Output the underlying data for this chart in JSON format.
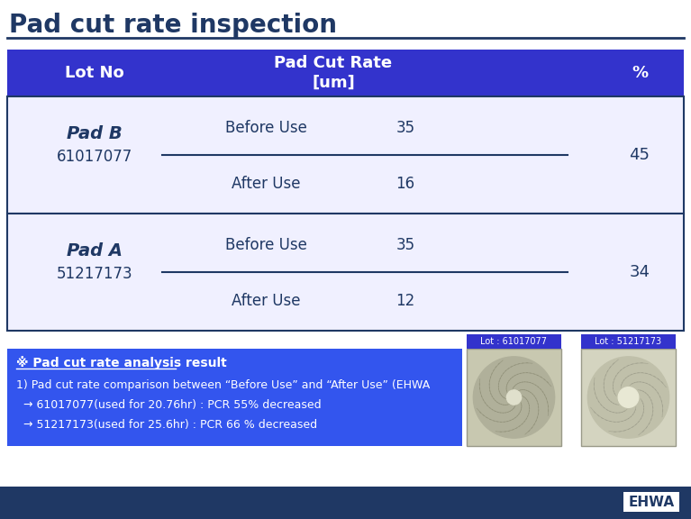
{
  "title": "Pad cut rate inspection",
  "title_color": "#1f3864",
  "title_fontsize": 20,
  "header_bg": "#3333cc",
  "header_text_color": "#ffffff",
  "header_col1": "Lot No",
  "header_col2": "Pad Cut Rate\n[um]",
  "header_col3": "%",
  "row_border_color": "#1f3864",
  "row1_pad_name": "Pad B",
  "row1_lot": "61017077",
  "row1_before": "35",
  "row1_after": "16",
  "row1_pct": "45",
  "row2_pad_name": "Pad A",
  "row2_lot": "51217173",
  "row2_before": "35",
  "row2_after": "12",
  "row2_pct": "34",
  "before_label": "Before Use",
  "after_label": "After Use",
  "analysis_bg": "#3355ee",
  "analysis_title": "※ Pad cut rate analysis result",
  "analysis_line1": "1) Pad cut rate comparison between “Before Use” and “After Use” (EHWA",
  "analysis_line2": "→ 61017077(used for 20.76hr) : PCR 55% decreased",
  "analysis_line3": "→ 51217173(used for 25.6hr) : PCR 66 % decreased",
  "label_lot1": "Lot : 61017077",
  "label_lot2": "Lot : 51217173",
  "divider_color": "#1f3864",
  "cell_text_color": "#1f3864",
  "analysis_text_color": "#ffffff",
  "footer_bg": "#1f3864",
  "ehwa_text": "EHWA",
  "ehwa_bg": "#ffffff",
  "ehwa_text_color": "#1f3864",
  "row_bg": "#f0f0ff"
}
